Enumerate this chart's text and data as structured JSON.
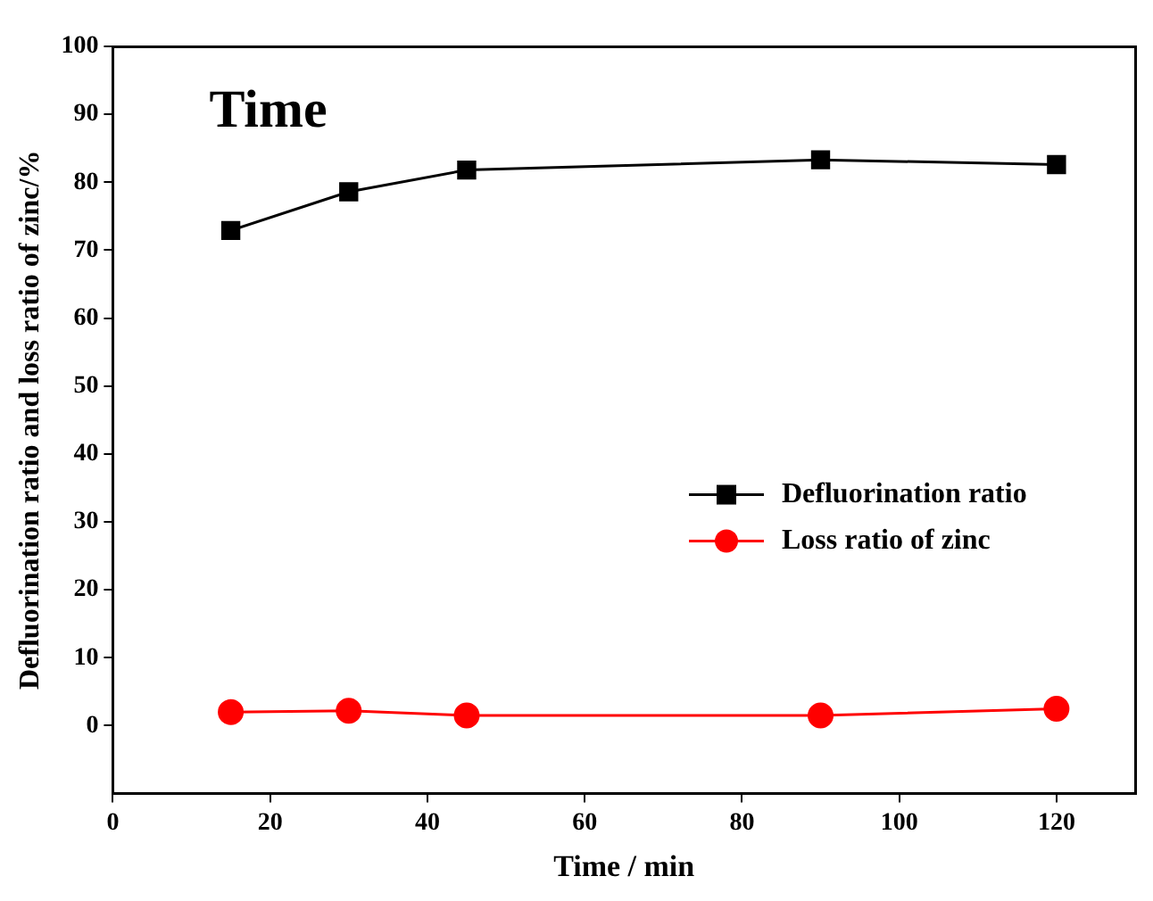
{
  "chart_data": {
    "type": "line",
    "xlabel": "Time / min",
    "ylabel": "Defluorination ratio and loss ratio of zinc/%",
    "annotations": [
      "Time"
    ],
    "x": [
      15,
      30,
      45,
      90,
      120
    ],
    "series": [
      {
        "name": "Defluorination ratio",
        "color": "#000000",
        "marker": "square",
        "values": [
          72.9,
          78.6,
          81.8,
          83.3,
          82.6
        ]
      },
      {
        "name": "Loss ratio of zinc",
        "color": "#ff0000",
        "marker": "circle",
        "values": [
          2.0,
          2.2,
          1.5,
          1.5,
          2.5
        ]
      }
    ],
    "xlim": [
      0,
      130
    ],
    "xticks": [
      0,
      20,
      40,
      60,
      80,
      100,
      120
    ],
    "ylim": [
      -10,
      100
    ],
    "yticks": [
      0,
      10,
      20,
      30,
      40,
      50,
      60,
      70,
      80,
      90,
      100
    ],
    "grid": false,
    "legend": "right",
    "line_style": "solid"
  }
}
